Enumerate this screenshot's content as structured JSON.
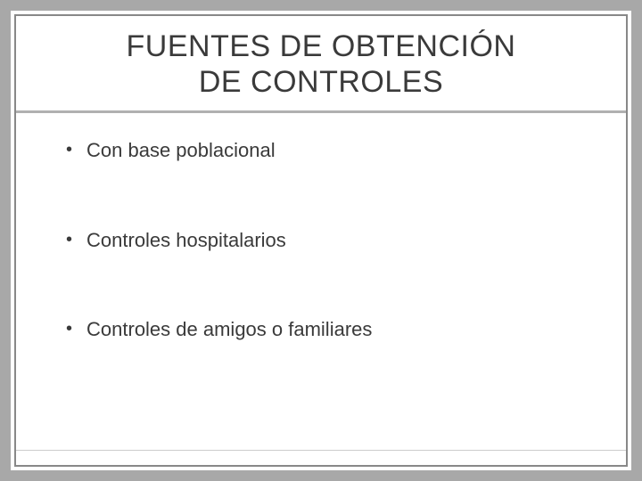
{
  "slide": {
    "title_line1": "FUENTES DE OBTENCIÓN",
    "title_line2": "DE CONTROLES",
    "bullets": [
      {
        "text": "Con base poblacional"
      },
      {
        "text": "Controles hospitalarios"
      },
      {
        "text": "Controles de amigos o familiares"
      }
    ]
  },
  "style": {
    "outer_border_color": "#a8a8a8",
    "inner_border_color": "#888888",
    "divider_color": "#b0b0b0",
    "text_color": "#3a3a3a",
    "background_color": "#ffffff",
    "title_fontsize": 34,
    "bullet_fontsize": 22
  }
}
